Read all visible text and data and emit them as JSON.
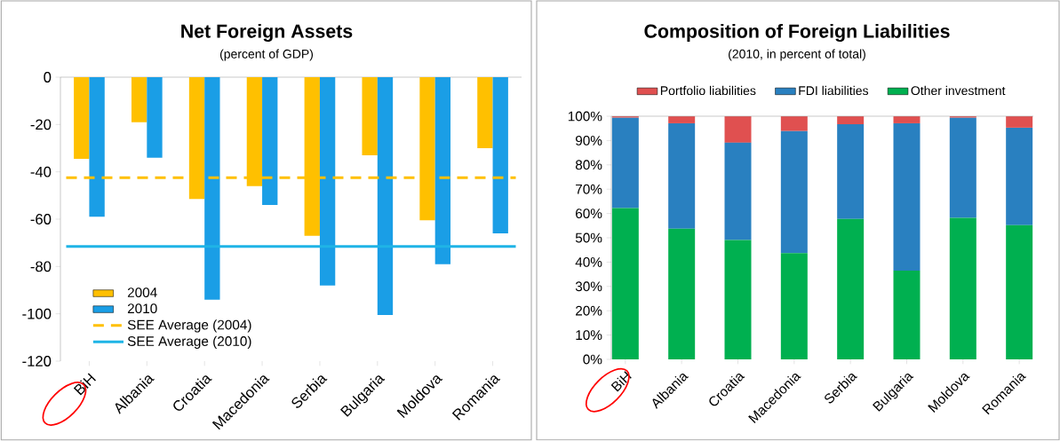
{
  "chart_data": [
    {
      "type": "bar",
      "title": "Net Foreign Assets",
      "subtitle": "(percent of GDP)",
      "categories": [
        "BiH",
        "Albania",
        "Croatia",
        "Macedonia",
        "Serbia",
        "Bulgaria",
        "Moldova",
        "Romania"
      ],
      "series": [
        {
          "name": "2004",
          "color": "#ffc000",
          "values": [
            -34.5,
            -19,
            -51.5,
            -46,
            -67,
            -33,
            -60.5,
            -30
          ]
        },
        {
          "name": "2010",
          "color": "#1a9ee6",
          "values": [
            -59,
            -34,
            -94,
            -54,
            -88,
            -100.5,
            -79,
            -66
          ]
        }
      ],
      "ylim": [
        -120,
        0
      ],
      "yticks": [
        -120,
        -100,
        -80,
        -60,
        -40,
        -20,
        0
      ],
      "ref_lines": [
        {
          "axis": "y",
          "value": -42.5,
          "label": "SEE Average (2004)",
          "color": "#ffc000",
          "line_style": "dashed"
        },
        {
          "axis": "y",
          "value": -71.5,
          "label": "SEE Average (2010)",
          "color": "#1fb4e6",
          "line_style": "solid"
        }
      ],
      "legend": "bottom left"
    },
    {
      "type": "bar",
      "stacked": true,
      "title": "Composition  of Foreign Liabilities",
      "subtitle": "(2010, in percent of total)",
      "categories": [
        "BiH",
        "Albania",
        "Croatia",
        "Macedonia",
        "Serbia",
        "Bulgaria",
        "Moldova",
        "Romania"
      ],
      "series": [
        {
          "name": "Other investment",
          "color": "#00b050",
          "values": [
            62.2,
            53.7,
            49.1,
            43.7,
            57.8,
            36.5,
            58.2,
            55.2
          ]
        },
        {
          "name": "FDI liabilities",
          "color": "#2980c0",
          "values": [
            37.2,
            43.4,
            40,
            50.2,
            38.9,
            60.6,
            41.2,
            40.1
          ]
        },
        {
          "name": "Portfolio liabilities",
          "color": "#e05050",
          "values": [
            0.6,
            2.9,
            10.9,
            6.1,
            3.3,
            2.9,
            0.6,
            4.7
          ]
        }
      ],
      "ylim": [
        0,
        100
      ],
      "yticks": [
        {
          "value": 0,
          "label": "0%"
        },
        {
          "value": 10,
          "label": "10%"
        },
        {
          "value": 20,
          "label": "20%"
        },
        {
          "value": 30,
          "label": "30%"
        },
        {
          "value": 40,
          "label": "40%"
        },
        {
          "value": 50,
          "label": "50%"
        },
        {
          "value": 60,
          "label": "60%"
        },
        {
          "value": 70,
          "label": "70%"
        },
        {
          "value": 80,
          "label": "80%"
        },
        {
          "value": 90,
          "label": "90%"
        },
        {
          "value": 100,
          "label": "100%"
        }
      ],
      "legend": "top"
    }
  ]
}
